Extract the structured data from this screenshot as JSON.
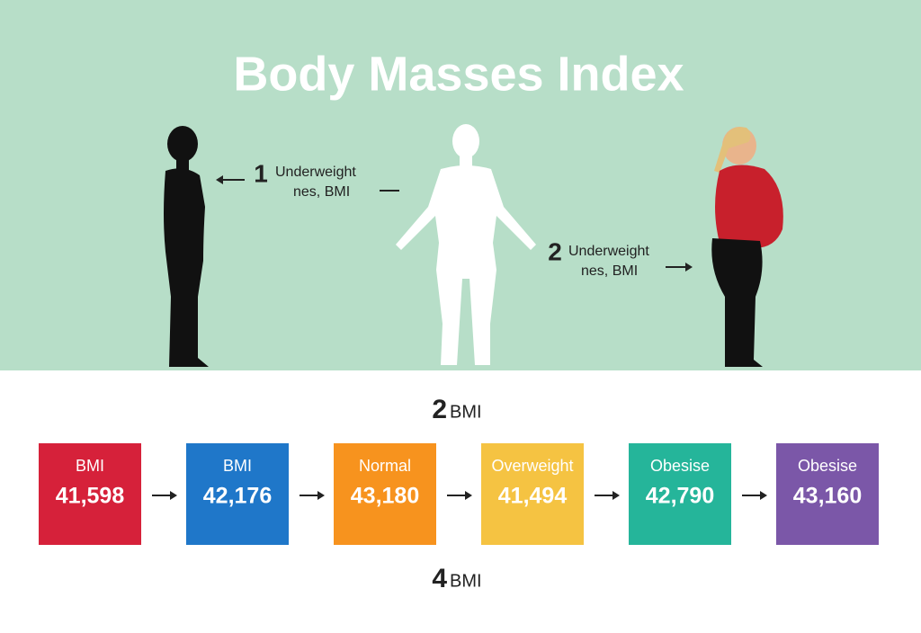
{
  "header": {
    "title": "Body Masses Index"
  },
  "annotations": [
    {
      "number": "1",
      "lines": [
        "Underweight",
        "nes, BMI"
      ]
    },
    {
      "number": "2",
      "lines": [
        "Underweight",
        "nes, BMI"
      ]
    }
  ],
  "section_top": {
    "number": "2",
    "label": "BMI"
  },
  "boxes": [
    {
      "label": "BMI",
      "value": "41,598",
      "color": "#d6213a"
    },
    {
      "label": "BMI",
      "value": "42,176",
      "color": "#1f77c9"
    },
    {
      "label": "Normal",
      "value": "43,180",
      "color": "#f7931e"
    },
    {
      "label": "Overweight",
      "value": "41,494",
      "color": "#f5c342"
    },
    {
      "label": "Obesise",
      "value": "42,790",
      "color": "#25b59a"
    },
    {
      "label": "Obesise",
      "value": "43,160",
      "color": "#7b57a8"
    }
  ],
  "section_bottom": {
    "number": "4",
    "label": "BMI"
  }
}
